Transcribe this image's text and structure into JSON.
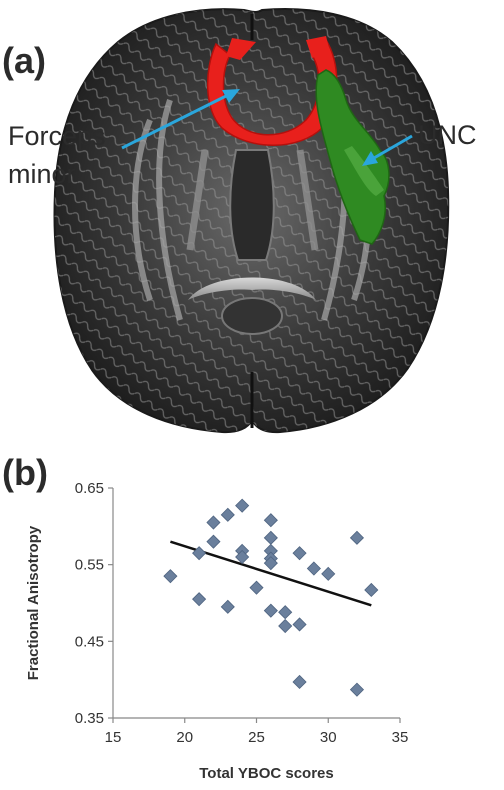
{
  "figure": {
    "panel_a_label": "(a)",
    "panel_b_label": "(b)",
    "callout_forceps": "Forceps minor",
    "callout_unc": "UNC",
    "colors": {
      "forceps": "#e8201c",
      "unc": "#2f8a22",
      "arrow": "#2aa6dc",
      "marker": "#6a7f9c",
      "fit_line": "#111111"
    }
  },
  "chart_data": {
    "type": "scatter",
    "xlabel": "Total YBOC  scores",
    "ylabel": "Fractional Anisotropy",
    "xlim": [
      15,
      35
    ],
    "ylim": [
      0.35,
      0.65
    ],
    "xticks": [
      15,
      20,
      25,
      30,
      35
    ],
    "yticks": [
      0.35,
      0.45,
      0.55,
      0.65
    ],
    "marker": "diamond",
    "grid": false,
    "points": [
      {
        "x": 19,
        "y": 0.535
      },
      {
        "x": 21,
        "y": 0.565
      },
      {
        "x": 21,
        "y": 0.505
      },
      {
        "x": 22,
        "y": 0.605
      },
      {
        "x": 22,
        "y": 0.58
      },
      {
        "x": 23,
        "y": 0.615
      },
      {
        "x": 23,
        "y": 0.495
      },
      {
        "x": 24,
        "y": 0.627
      },
      {
        "x": 24,
        "y": 0.568
      },
      {
        "x": 24,
        "y": 0.56
      },
      {
        "x": 25,
        "y": 0.52
      },
      {
        "x": 26,
        "y": 0.608
      },
      {
        "x": 26,
        "y": 0.585
      },
      {
        "x": 26,
        "y": 0.568
      },
      {
        "x": 26,
        "y": 0.558
      },
      {
        "x": 26,
        "y": 0.552
      },
      {
        "x": 26,
        "y": 0.49
      },
      {
        "x": 27,
        "y": 0.488
      },
      {
        "x": 27,
        "y": 0.47
      },
      {
        "x": 28,
        "y": 0.565
      },
      {
        "x": 28,
        "y": 0.472
      },
      {
        "x": 28,
        "y": 0.397
      },
      {
        "x": 29,
        "y": 0.545
      },
      {
        "x": 30,
        "y": 0.538
      },
      {
        "x": 32,
        "y": 0.585
      },
      {
        "x": 32,
        "y": 0.387
      },
      {
        "x": 33,
        "y": 0.517
      }
    ],
    "trendline": {
      "x": [
        19,
        33
      ],
      "y": [
        0.58,
        0.497
      ]
    }
  }
}
